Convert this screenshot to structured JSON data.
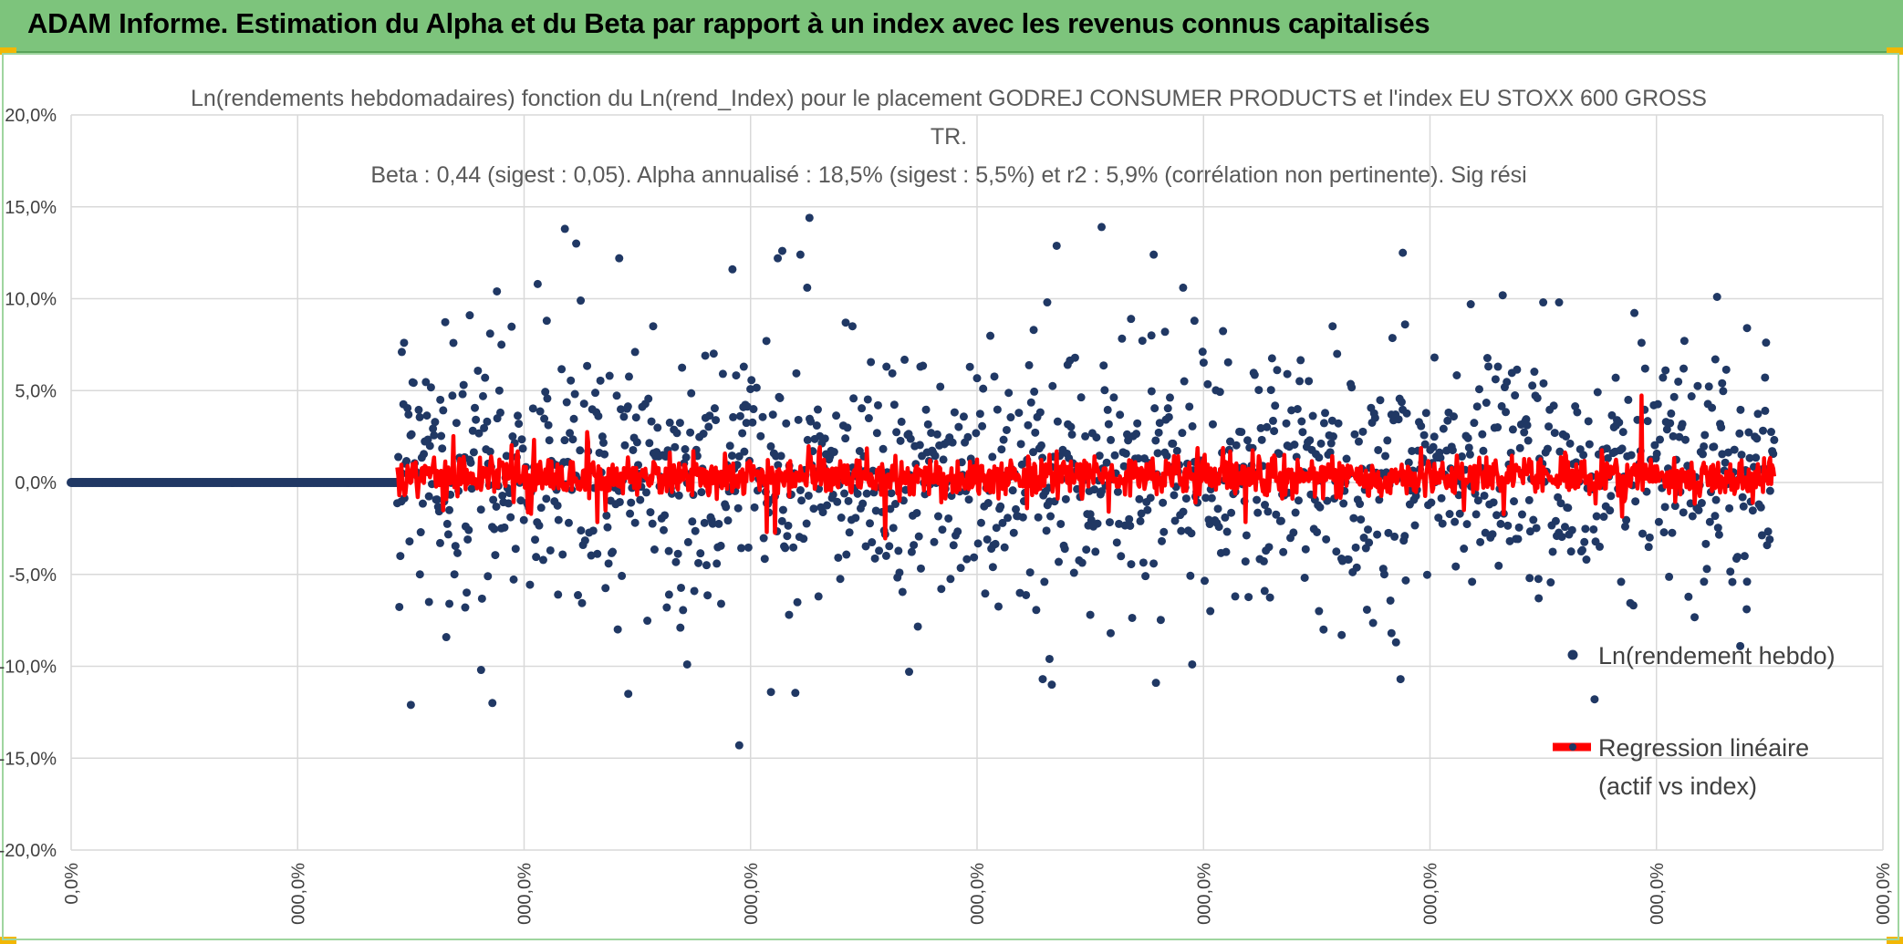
{
  "banner": {
    "title": "ADAM Informe. Estimation du Alpha et du Beta par rapport à un index avec les revenus connus capitalisés"
  },
  "chart_data": {
    "type": "scatter",
    "title_lines": [
      "Ln(rendements hebdomadaires) fonction du Ln(rend_Index) pour le placement GODREJ CONSUMER PRODUCTS  et l'index EU STOXX 600 GROSS",
      "TR.",
      "Beta : 0,44 (sigest : 0,05). Alpha annualisé : 18,5% (sigest : 5,5%) et r2 : 5,9% (corrélation non pertinente). Sig rési"
    ],
    "beta": 0.44,
    "alpha_weekly": 0.0033,
    "y_range": [
      -0.2,
      0.2
    ],
    "y_ticks": [
      {
        "value": 0.2,
        "label": "20,0%"
      },
      {
        "value": 0.15,
        "label": "15,0%"
      },
      {
        "value": 0.1,
        "label": "10,0%"
      },
      {
        "value": 0.05,
        "label": "5,0%"
      },
      {
        "value": 0.0,
        "label": "0,0%"
      },
      {
        "value": -0.05,
        "label": "-5,0%"
      },
      {
        "value": -0.1,
        "label": "-10,0%"
      },
      {
        "value": -0.15,
        "label": "-15,0%"
      },
      {
        "value": -0.2,
        "label": "-20,0%"
      }
    ],
    "x_range": [
      0,
      8
    ],
    "x_ticks": [
      "0,0%",
      "000,0%",
      "000,0%",
      "000,0%",
      "000,0%",
      "000,0%",
      "000,0%",
      "000,0%",
      "000,0%"
    ],
    "grid": true,
    "legend_position": "right",
    "legend": [
      {
        "label": "Ln(rendement hebdo)",
        "color": "#203864"
      },
      {
        "label_lines": [
          "Regression linéaire",
          "(actif vs index)"
        ],
        "color": "#ff0000"
      }
    ],
    "series": [
      {
        "name": "Ln(rendement hebdo)",
        "color": "#203864"
      },
      {
        "name": "Regression linéaire (actif vs index)",
        "color": "#ff0000"
      }
    ],
    "zero_segment_x": [
      0,
      1.44
    ],
    "data_x_range": [
      1.44,
      7.52
    ],
    "highlight_points": [
      [
        1.46,
        0.071
      ],
      [
        1.47,
        0.076
      ],
      [
        1.5,
        -0.121
      ],
      [
        1.54,
        -0.05
      ],
      [
        1.58,
        -0.065
      ],
      [
        1.63,
        0.045
      ],
      [
        1.67,
        -0.066
      ],
      [
        1.74,
        -0.068
      ],
      [
        1.76,
        0.091
      ],
      [
        1.81,
        -0.102
      ],
      [
        1.84,
        -0.051
      ],
      [
        1.85,
        0.081
      ],
      [
        1.86,
        -0.12
      ],
      [
        1.88,
        0.104
      ],
      [
        1.9,
        0.075
      ],
      [
        2.06,
        0.108
      ],
      [
        2.1,
        0.088
      ],
      [
        2.15,
        -0.061
      ],
      [
        2.18,
        0.138
      ],
      [
        2.23,
        0.13
      ],
      [
        2.25,
        0.099
      ],
      [
        2.42,
        0.122
      ],
      [
        2.46,
        -0.115
      ],
      [
        2.49,
        0.071
      ],
      [
        2.57,
        0.085
      ],
      [
        2.64,
        -0.061
      ],
      [
        2.69,
        -0.079
      ],
      [
        2.72,
        -0.099
      ],
      [
        2.8,
        0.069
      ],
      [
        2.87,
        -0.066
      ],
      [
        2.92,
        0.116
      ],
      [
        2.95,
        -0.143
      ],
      [
        2.97,
        0.063
      ],
      [
        3.07,
        0.077
      ],
      [
        3.09,
        -0.114
      ],
      [
        3.12,
        0.122
      ],
      [
        3.14,
        0.126
      ],
      [
        3.17,
        -0.072
      ],
      [
        3.22,
        0.124
      ],
      [
        3.26,
        0.144
      ],
      [
        3.25,
        0.106
      ],
      [
        3.3,
        -0.062
      ],
      [
        3.42,
        0.087
      ],
      [
        3.45,
        0.085
      ],
      [
        3.6,
        0.063
      ],
      [
        3.7,
        -0.103
      ],
      [
        3.75,
        0.063
      ],
      [
        4.07,
        -0.046
      ],
      [
        4.25,
        0.083
      ],
      [
        4.29,
        -0.107
      ],
      [
        4.31,
        0.098
      ],
      [
        4.33,
        -0.11
      ],
      [
        4.32,
        -0.096
      ],
      [
        4.4,
        0.064
      ],
      [
        4.5,
        -0.072
      ],
      [
        4.55,
        0.139
      ],
      [
        4.59,
        -0.082
      ],
      [
        4.68,
        0.089
      ],
      [
        4.77,
        0.08
      ],
      [
        4.78,
        0.124
      ],
      [
        4.79,
        -0.109
      ],
      [
        4.83,
        0.082
      ],
      [
        4.91,
        0.106
      ],
      [
        4.95,
        -0.099
      ],
      [
        4.96,
        0.088
      ],
      [
        5.03,
        -0.07
      ],
      [
        5.14,
        -0.062
      ],
      [
        5.27,
        -0.059
      ],
      [
        5.37,
        0.059
      ],
      [
        5.51,
        -0.07
      ],
      [
        5.53,
        -0.08
      ],
      [
        5.57,
        0.085
      ],
      [
        5.59,
        0.07
      ],
      [
        5.61,
        -0.083
      ],
      [
        5.83,
        -0.082
      ],
      [
        5.85,
        -0.087
      ],
      [
        5.87,
        -0.107
      ],
      [
        5.88,
        0.125
      ],
      [
        5.89,
        0.086
      ],
      [
        6.02,
        0.068
      ],
      [
        6.18,
        0.097
      ],
      [
        6.3,
        0.063
      ],
      [
        6.44,
        -0.052
      ],
      [
        6.48,
        -0.063
      ],
      [
        6.5,
        0.098
      ],
      [
        6.57,
        0.098
      ],
      [
        6.82,
        0.057
      ],
      [
        6.95,
        0.062
      ],
      [
        7.04,
        0.061
      ],
      [
        7.12,
        0.062
      ],
      [
        7.21,
        -0.054
      ],
      [
        7.26,
        0.067
      ],
      [
        7.29,
        0.054
      ],
      [
        7.37,
        -0.089
      ],
      [
        7.4,
        0.084
      ],
      [
        7.4,
        -0.054
      ],
      [
        7.48,
        0.039
      ],
      [
        7.5,
        -0.031
      ]
    ]
  }
}
